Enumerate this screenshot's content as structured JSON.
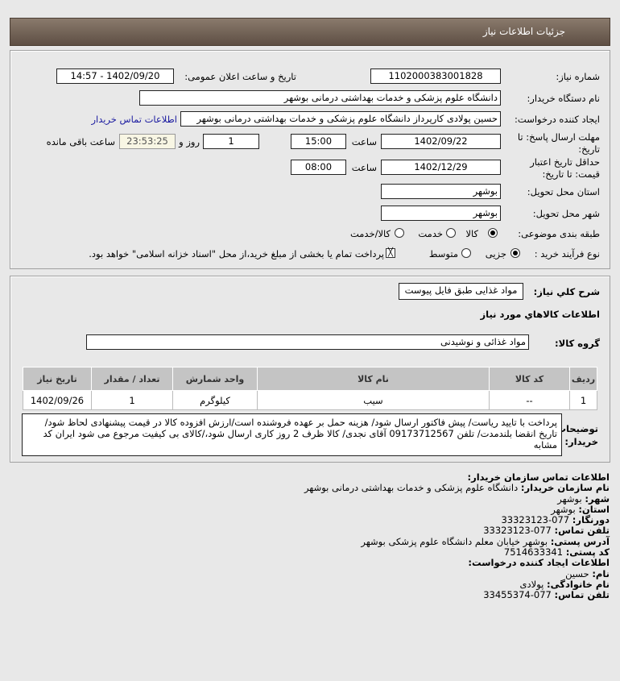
{
  "header": {
    "title": "جزئیات اطلاعات نیاز"
  },
  "form": {
    "need_number_label": "شماره نیاز:",
    "need_number": "1102000383001828",
    "announce_label": "تاریخ و ساعت اعلان عمومی:",
    "announce_value": "1402/09/20 - 14:57",
    "buyer_label": "نام دستگاه خریدار:",
    "buyer_value": "دانشگاه علوم پزشکی و خدمات بهداشتی درمانی بوشهر",
    "creator_label": "ایجاد کننده درخواست:",
    "creator_value": "حسین پولادی کارپرداز دانشگاه علوم پزشکی و خدمات بهداشتی درمانی بوشهر",
    "contact_link": "اطلاعات تماس خریدار",
    "deadline_label_1": "مهلت ارسال پاسخ: تا",
    "deadline_label_2": "تاریخ:",
    "deadline_date": "1402/09/22",
    "time_label": "ساعت",
    "deadline_time": "15:00",
    "days": "1",
    "days_label": "روز و",
    "remaining": "23:53:25",
    "remaining_label": "ساعت باقی مانده",
    "validity_label_1": "حداقل تاریخ اعتبار",
    "validity_label_2": "قیمت: تا تاریخ:",
    "validity_date": "1402/12/29",
    "validity_time": "08:00",
    "province_label": "استان محل تحویل:",
    "province_value": "بوشهر",
    "city_label": "شهر محل تحویل:",
    "city_value": "بوشهر",
    "category_label": "طبقه بندی موضوعی:",
    "category_options": [
      "کالا",
      "خدمت",
      "کالا/خدمت"
    ],
    "category_selected": "کالا",
    "process_label": "نوع فرآیند خرید :",
    "process_options": [
      "جزیی",
      "متوسط"
    ],
    "process_selected": "جزیی",
    "payment_note": "پرداخت تمام یا بخشی از مبلغ خرید،از محل \"اسناد خزانه اسلامی\" خواهد بود."
  },
  "needs": {
    "summary_label": "شرح كلي نياز:",
    "summary_value": "مواد غذایی طبق فایل پیوست",
    "goods_title": "اطلاعات كالاهاي مورد نياز",
    "group_label": "گروه کالا:",
    "group_value": "مواد غذائی و نوشیدنی",
    "table": {
      "headers": [
        "ردیف",
        "کد کالا",
        "نام کالا",
        "واحد شمارش",
        "تعداد / مقدار",
        "تاریخ نیاز"
      ],
      "rows": [
        [
          "1",
          "--",
          "سیب",
          "کیلوگرم",
          "1",
          "1402/09/26"
        ]
      ]
    },
    "desc_label_1": "توضیحات",
    "desc_label_2": "خریدار:",
    "desc_value": "پرداخت با تایید ریاست/ پیش فاکتور ارسال شود/ هزینه حمل بر عهده فروشنده است/ارزش افزوده کالا در قیمت پیشنهادی لحاظ شود/تاریخ انقضا بلندمدت/ تلفن 09173712567 آقای نجدی/ کالا ظرف 2 روز کاری ارسال شود،/کالای بی کیفیت مرجوع می شود ایران کد مشابه"
  },
  "contact": {
    "title": "اطلاعات تماس سازمان خریدار:",
    "org_label": "نام سازمان خریدار:",
    "org": "دانشگاه علوم پزشکی و خدمات بهداشتی درمانی بوشهر",
    "city_label": "شهر:",
    "city": "بوشهر",
    "province_label": "استان:",
    "province": "بوشهر",
    "fax_label": "دورنگار:",
    "fax": "077-33323123",
    "phone_label": "تلفن تماس:",
    "phone": "077-33323123",
    "address_label": "آدرس پستی:",
    "address": "بوشهر خیابان معلم دانشگاه علوم پزشکی بوشهر",
    "postal_label": "کد پستی:",
    "postal": "7514633341",
    "creator_title": "اطلاعات ایجاد کننده درخواست:",
    "name_label": "نام:",
    "name": "حسین",
    "family_label": "نام خانوادگی:",
    "family": "پولادی",
    "cphone_label": "تلفن تماس:",
    "cphone": "077-33455374"
  }
}
